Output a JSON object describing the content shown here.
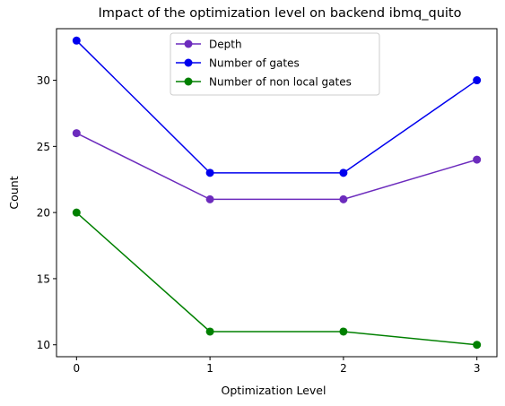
{
  "chart_data": {
    "type": "line",
    "title": "Impact of the optimization level on backend ibmq_quito",
    "xlabel": "Optimization Level",
    "ylabel": "Count",
    "x": [
      0,
      1,
      2,
      3
    ],
    "x_ticks": [
      "0",
      "1",
      "2",
      "3"
    ],
    "y_ticks": [
      "10",
      "15",
      "20",
      "25",
      "30"
    ],
    "xlim": [
      -0.15,
      3.15
    ],
    "ylim": [
      9.1,
      33.9
    ],
    "grid": false,
    "legend_position": "top-center",
    "series": [
      {
        "name": "Depth",
        "values": [
          26,
          21,
          21,
          24
        ],
        "color": "#6c2bbd"
      },
      {
        "name": "Number of gates",
        "values": [
          33,
          23,
          23,
          30
        ],
        "color": "#0000ee"
      },
      {
        "name": "Number of non local gates",
        "values": [
          20,
          11,
          11,
          10
        ],
        "color": "#008000"
      }
    ]
  }
}
